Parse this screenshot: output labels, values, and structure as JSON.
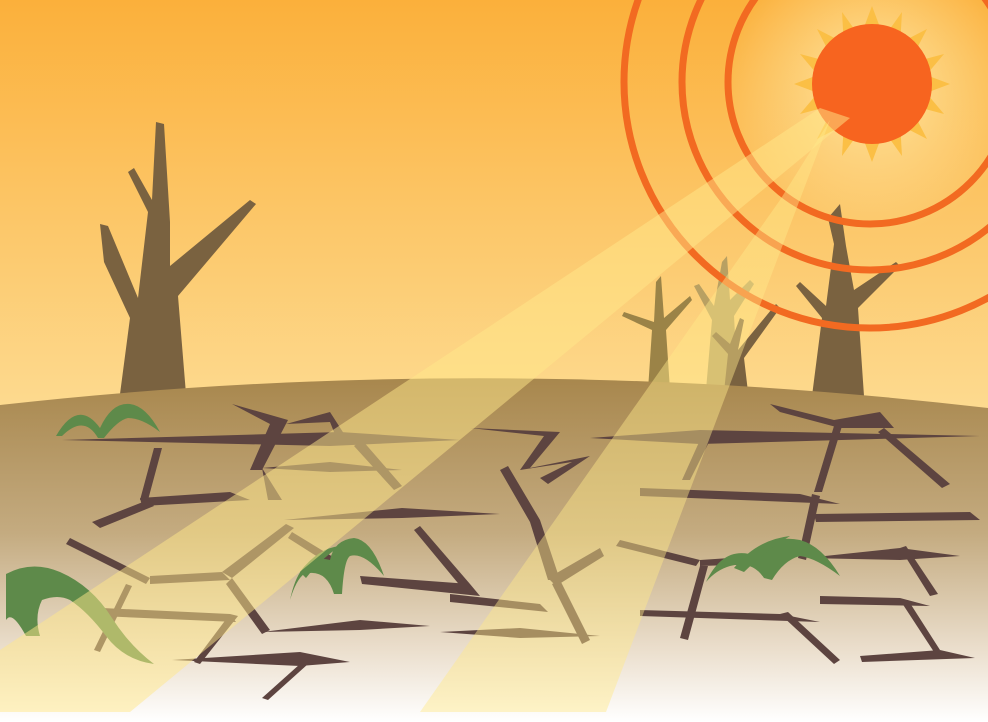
{
  "scene": {
    "subject": "drought-illustration",
    "palette": {
      "sky_top": "#fbb03b",
      "sky_bottom": "#fff2d6",
      "ground_top": "#a8874d",
      "ground_bottom": "#ffffff",
      "sun": "#f7641f",
      "sun_rays": "#fbbf45",
      "heat_rings": "#f26a21",
      "sunbeam": "#ffe88a",
      "dead_tree": "#7a6240",
      "dead_tree_faded": "#b9a062",
      "cracks": "#5d4440",
      "sprouts": "#5e8a4a"
    },
    "icons": [
      "sun-icon",
      "dead-tree-icon",
      "sprout-icon"
    ]
  }
}
